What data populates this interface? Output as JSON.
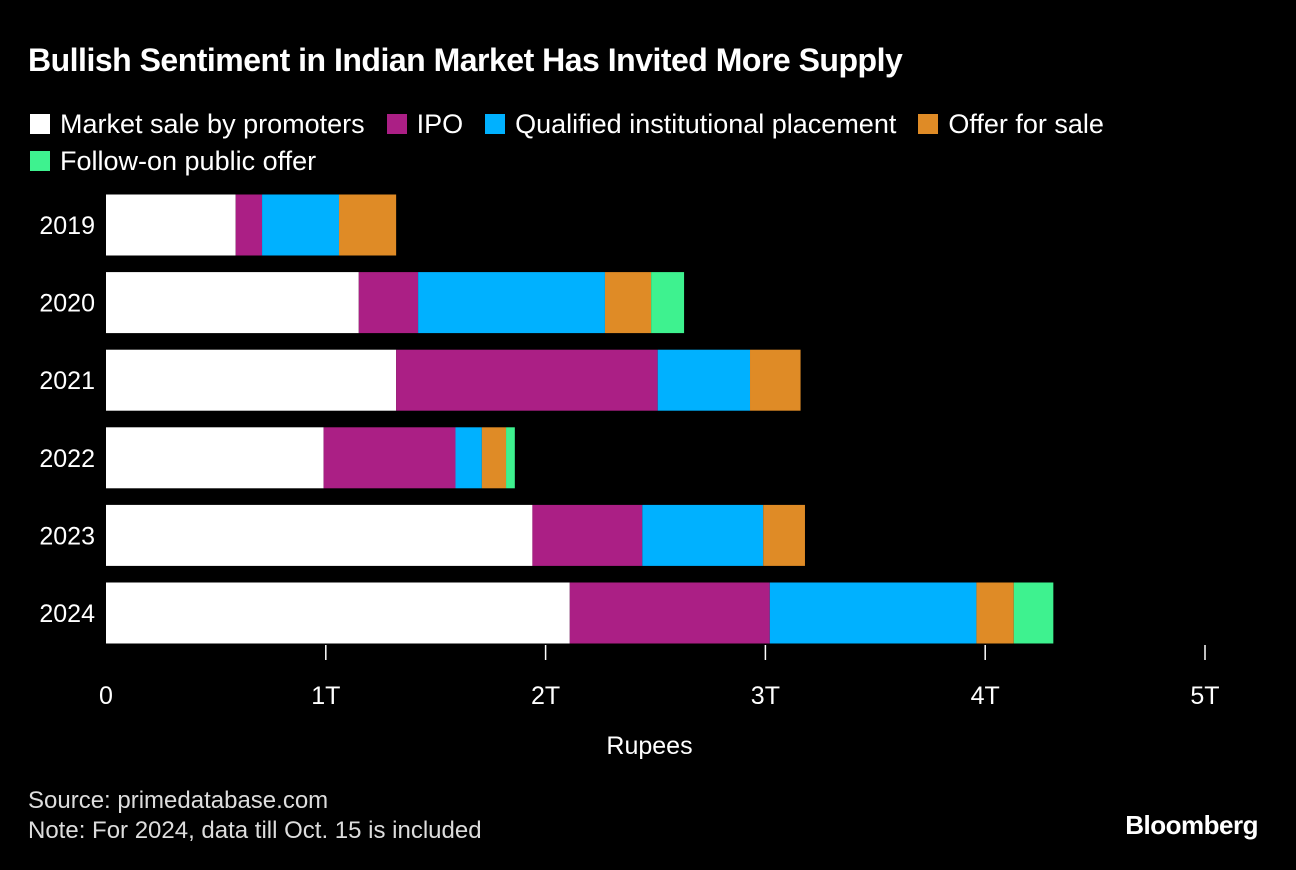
{
  "chart_data": {
    "type": "bar",
    "orientation": "horizontal",
    "stacked": true,
    "title": "Bullish Sentiment in Indian Market Has Invited More Supply",
    "xlabel": "Rupees",
    "ylabel": "",
    "xlim": [
      0,
      5
    ],
    "x_ticks": [
      {
        "value": 0,
        "label": "0"
      },
      {
        "value": 1,
        "label": "1T"
      },
      {
        "value": 2,
        "label": "2T"
      },
      {
        "value": 3,
        "label": "3T"
      },
      {
        "value": 4,
        "label": "4T"
      },
      {
        "value": 5,
        "label": "5T"
      }
    ],
    "grid": false,
    "legend_position": "top",
    "categories": [
      "2019",
      "2020",
      "2021",
      "2022",
      "2023",
      "2024"
    ],
    "series": [
      {
        "name": "Market sale by promoters",
        "color": "#ffffff",
        "values": [
          0.59,
          1.15,
          1.32,
          0.99,
          1.94,
          2.11
        ]
      },
      {
        "name": "IPO",
        "color": "#ab1f85",
        "values": [
          0.12,
          0.27,
          1.19,
          0.6,
          0.5,
          0.91
        ]
      },
      {
        "name": "Qualified institutional placement",
        "color": "#00b1ff",
        "values": [
          0.35,
          0.85,
          0.42,
          0.12,
          0.55,
          0.94
        ]
      },
      {
        "name": "Offer for sale",
        "color": "#df8b26",
        "values": [
          0.26,
          0.21,
          0.23,
          0.11,
          0.19,
          0.17
        ]
      },
      {
        "name": "Follow-on public offer",
        "color": "#3ef28f",
        "values": [
          0,
          0.15,
          0,
          0.04,
          0,
          0.18
        ]
      }
    ]
  },
  "footer": {
    "source": "Source: primedatabase.com",
    "note": "Note: For 2024, data till Oct. 15 is included",
    "brand": "Bloomberg"
  }
}
